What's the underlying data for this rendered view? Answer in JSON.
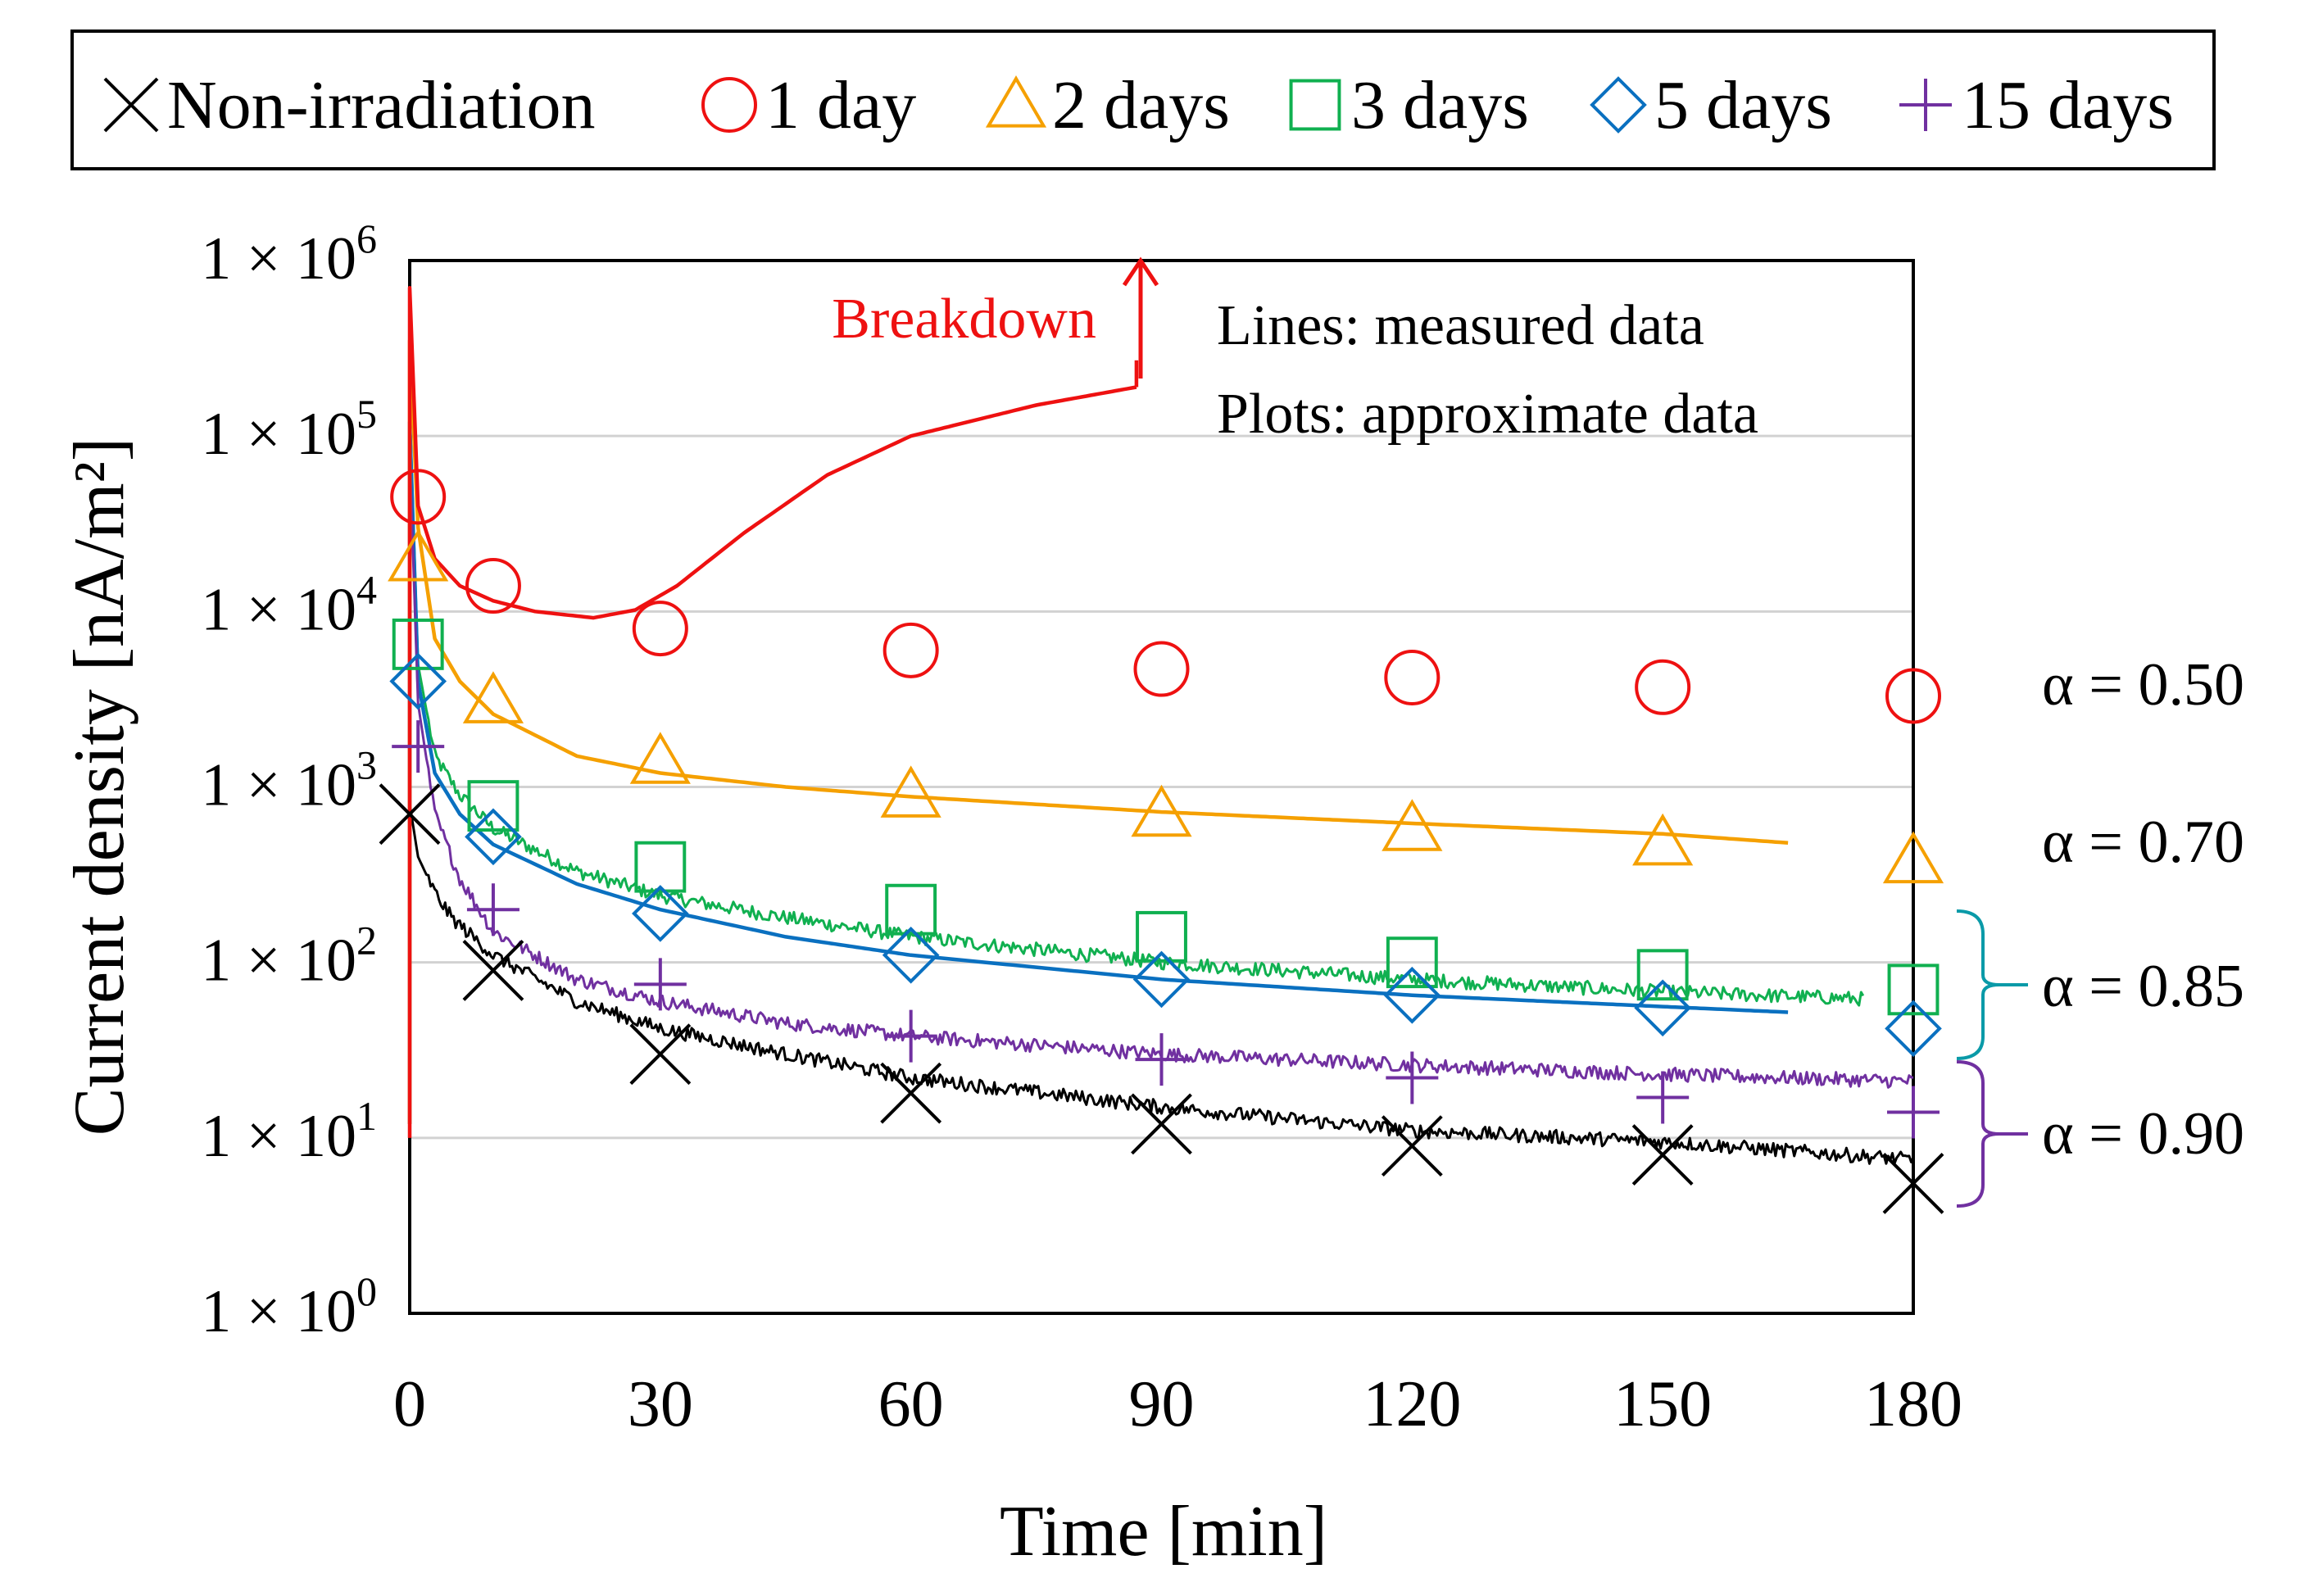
{
  "chart_data": {
    "type": "scatter",
    "title": "",
    "xlabel": "Time [min]",
    "ylabel": "Current density [nA/m²]",
    "xlim": [
      0,
      180
    ],
    "ylim_log10": [
      0,
      6
    ],
    "x_ticks": [
      0,
      30,
      60,
      90,
      120,
      150,
      180
    ],
    "y_ticks": [
      {
        "base": "1 × 10",
        "exp": "0",
        "value": 1
      },
      {
        "base": "1 × 10",
        "exp": "1",
        "value": 10
      },
      {
        "base": "1 × 10",
        "exp": "2",
        "value": 100
      },
      {
        "base": "1 × 10",
        "exp": "3",
        "value": 1000
      },
      {
        "base": "1 × 10",
        "exp": "4",
        "value": 10000
      },
      {
        "base": "1 × 10",
        "exp": "5",
        "value": 100000
      },
      {
        "base": "1 × 10",
        "exp": "6",
        "value": 1000000
      }
    ],
    "grid": "horizontal",
    "legend_position": "top",
    "annotations": {
      "breakdown": "Breakdown",
      "lines_note": "Lines: measured data",
      "plots_note": "Plots: approximate data"
    },
    "series": [
      {
        "name": "Non-irradiation",
        "marker": "x",
        "color": "#000000",
        "points_x": [
          0,
          10,
          30,
          60,
          90,
          120,
          150,
          180
        ],
        "points_y": [
          700,
          90,
          30,
          18,
          12,
          9,
          8,
          5.5
        ],
        "line_x": [
          0,
          1,
          3,
          5,
          10,
          20,
          30,
          45,
          60,
          90,
          120,
          150,
          180
        ],
        "line_y": [
          800,
          400,
          250,
          180,
          110,
          60,
          42,
          30,
          22,
          15,
          11,
          9.5,
          7.5
        ],
        "noisy": true
      },
      {
        "name": "1 day",
        "marker": "circle",
        "color": "#ee1111",
        "points_x": [
          1,
          10,
          30,
          60,
          90,
          120,
          150,
          180
        ],
        "points_y": [
          45000,
          14000,
          8000,
          6000,
          4700,
          4200,
          3700,
          3300
        ],
        "line_x": [
          0,
          1,
          3,
          6,
          10,
          15,
          22,
          27,
          32,
          40,
          50,
          60,
          75,
          87
        ],
        "line_y": [
          700000,
          40000,
          20000,
          14000,
          11500,
          10000,
          9200,
          10200,
          14000,
          28000,
          60000,
          100000,
          150000,
          190000
        ],
        "noisy": false,
        "breakdown_at_x": 87,
        "alpha_label": "α = 0.50"
      },
      {
        "name": "2 days",
        "marker": "triangle",
        "color": "#f5a000",
        "points_x": [
          1,
          10,
          30,
          60,
          90,
          120,
          150,
          180
        ],
        "points_y": [
          20000,
          3100,
          1400,
          900,
          700,
          580,
          480,
          380
        ],
        "line_x": [
          0,
          1,
          3,
          6,
          10,
          20,
          30,
          45,
          60,
          90,
          120,
          150,
          165
        ],
        "line_y": [
          350000,
          30000,
          7000,
          4000,
          2600,
          1500,
          1200,
          1000,
          880,
          720,
          620,
          540,
          480
        ],
        "noisy": false,
        "alpha_label": "α = 0.70"
      },
      {
        "name": "3 days",
        "marker": "square",
        "color": "#10b050",
        "points_x": [
          1,
          10,
          30,
          60,
          90,
          120,
          150,
          180
        ],
        "points_y": [
          6500,
          780,
          350,
          200,
          140,
          100,
          85,
          70
        ],
        "line_x": [
          0,
          1,
          3,
          6,
          10,
          20,
          30,
          45,
          60,
          90,
          120,
          150,
          174
        ],
        "line_y": [
          150000,
          5000,
          1500,
          900,
          580,
          330,
          240,
          180,
          140,
          100,
          80,
          68,
          62
        ],
        "noisy": true,
        "alpha_label": "α = 0.85"
      },
      {
        "name": "5 days",
        "marker": "diamond",
        "color": "#0a70c0",
        "points_x": [
          1,
          10,
          30,
          60,
          90,
          120,
          150,
          180
        ],
        "points_y": [
          4000,
          520,
          190,
          110,
          80,
          65,
          55,
          42
        ],
        "line_x": [
          0,
          1,
          3,
          6,
          10,
          20,
          30,
          45,
          60,
          90,
          120,
          150,
          165
        ],
        "line_y": [
          120000,
          4000,
          1200,
          700,
          470,
          280,
          200,
          140,
          110,
          80,
          65,
          56,
          52
        ],
        "noisy": false,
        "alpha_label": "α = 0.85"
      },
      {
        "name": "15 days",
        "marker": "plus",
        "color": "#7030a0",
        "points_x": [
          1,
          10,
          30,
          60,
          90,
          120,
          150,
          180
        ],
        "points_y": [
          1700,
          200,
          75,
          38,
          28,
          22,
          17,
          14
        ],
        "line_x": [
          0,
          1,
          3,
          6,
          10,
          20,
          30,
          45,
          60,
          90,
          120,
          150,
          180
        ],
        "line_y": [
          80000,
          3000,
          700,
          300,
          150,
          80,
          60,
          45,
          38,
          30,
          26,
          23,
          21
        ],
        "noisy": true,
        "alpha_label": "α = 0.90"
      }
    ],
    "alpha_labels": [
      "α = 0.50",
      "α = 0.70",
      "α = 0.85",
      "α = 0.90"
    ]
  }
}
